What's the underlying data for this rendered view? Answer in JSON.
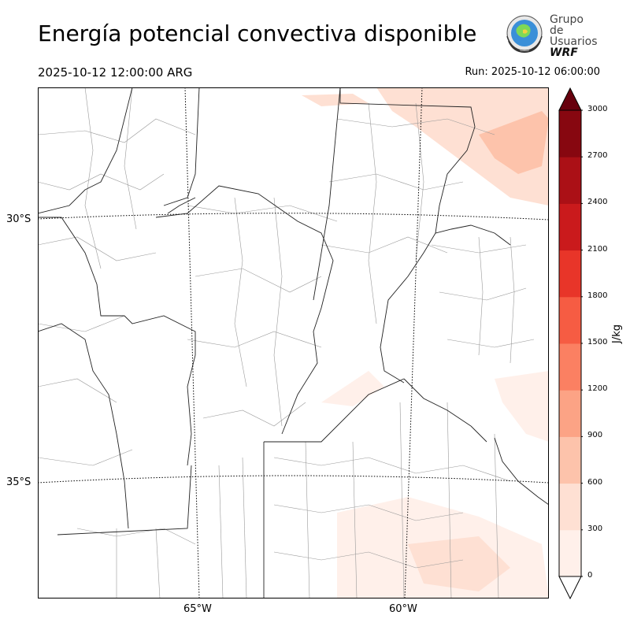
{
  "title": "Energía potencial convectiva disponible",
  "valid_time": "2025-10-12 12:00:00 ARG",
  "run_time": "Run: 2025-10-12 06:00:00",
  "logo": {
    "line1": "Grupo de",
    "line2": "Usuarios",
    "line3": "WRF"
  },
  "chart_data": {
    "type": "heatmap",
    "variable": "CAPE",
    "unit": "J/kg",
    "colorbar": {
      "label": "J/kg",
      "ticks": [
        "0",
        "300",
        "600",
        "900",
        "1200",
        "1500",
        "1800",
        "2100",
        "2400",
        "2700",
        "3000"
      ],
      "levels": [
        0,
        300,
        600,
        900,
        1200,
        1500,
        1800,
        2100,
        2400,
        2700,
        3000
      ],
      "colors": [
        "#fff0ea",
        "#fee0d3",
        "#fdc3ab",
        "#fca385",
        "#fb8062",
        "#f65c43",
        "#e83529",
        "#ca1a1c",
        "#ab1016",
        "#870710"
      ],
      "extend": "both",
      "under_color": "#ffffff",
      "over_color": "#67000d"
    },
    "lat_labels": [
      "30°S",
      "35°S"
    ],
    "lon_labels": [
      "65°W",
      "60°W"
    ],
    "grid": true
  }
}
